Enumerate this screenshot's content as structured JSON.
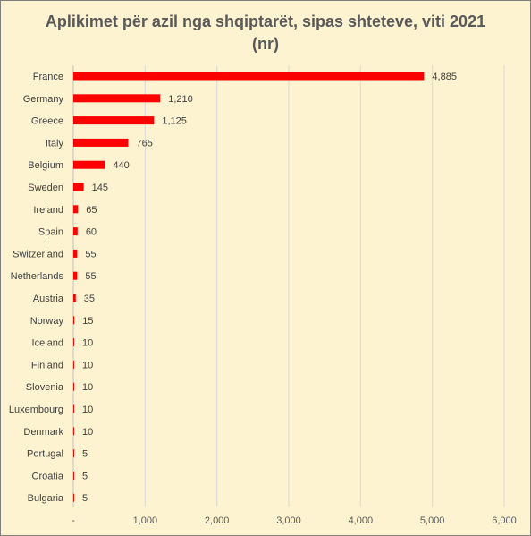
{
  "chart_data": {
    "type": "bar",
    "orientation": "horizontal",
    "title": "Aplikimet për azil nga shqiptarët, sipas shteteve, viti 2021",
    "subtitle": "(nr)",
    "xlabel": "",
    "ylabel": "",
    "categories": [
      "France",
      "Germany",
      "Greece",
      "Italy",
      "Belgium",
      "Sweden",
      "Ireland",
      "Spain",
      "Switzerland",
      "Netherlands",
      "Austria",
      "Norway",
      "Iceland",
      "Finland",
      "Slovenia",
      "Luxembourg",
      "Denmark",
      "Portugal",
      "Croatia",
      "Bulgaria"
    ],
    "values": [
      4885,
      1210,
      1125,
      765,
      440,
      145,
      65,
      60,
      55,
      55,
      35,
      15,
      10,
      10,
      10,
      10,
      10,
      5,
      5,
      5
    ],
    "data_labels": [
      "4,885",
      "1,210",
      "1,125",
      "765",
      "440",
      "145",
      "65",
      "60",
      "55",
      "55",
      "35",
      "15",
      "10",
      "10",
      "10",
      "10",
      "10",
      "5",
      "5",
      "5"
    ],
    "xlim": [
      0,
      6000
    ],
    "x_ticks": [
      0,
      1000,
      2000,
      3000,
      4000,
      5000,
      6000
    ],
    "x_tick_labels": [
      "-",
      "1,000",
      "2,000",
      "3,000",
      "4,000",
      "5,000",
      "6,000"
    ],
    "grid": "vertical",
    "legend": "none",
    "colors": {
      "bar": "#ff0000",
      "background": "#fdf3d0",
      "gridline": "#d9d9d9",
      "title": "#595959"
    }
  }
}
